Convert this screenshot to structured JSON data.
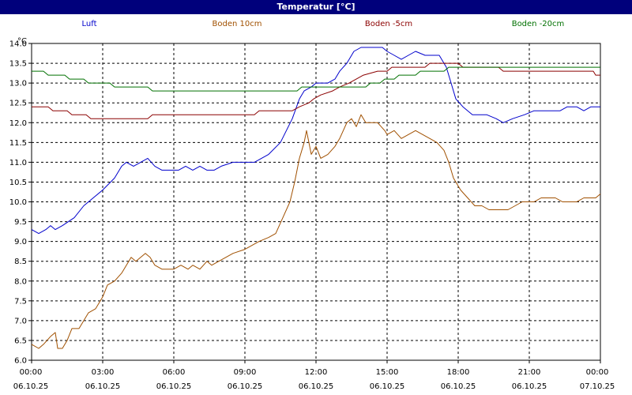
{
  "window": {
    "title": "Temperatur [°C]"
  },
  "chart_data": {
    "type": "line",
    "title": "Temperatur [°C]",
    "ylabel": "°C",
    "ylim": [
      6.0,
      14.0
    ],
    "yticks": [
      "6.0",
      "6.5",
      "7.0",
      "7.5",
      "8.0",
      "8.5",
      "9.0",
      "9.5",
      "10.0",
      "10.5",
      "11.0",
      "11.5",
      "12.0",
      "12.5",
      "13.0",
      "13.5",
      "14.0"
    ],
    "xlim": [
      0,
      24
    ],
    "xticks": [
      {
        "time": "00:00",
        "date": "06.10.25"
      },
      {
        "time": "03:00",
        "date": "06.10.25"
      },
      {
        "time": "06:00",
        "date": "06.10.25"
      },
      {
        "time": "09:00",
        "date": "06.10.25"
      },
      {
        "time": "12:00",
        "date": "06.10.25"
      },
      {
        "time": "15:00",
        "date": "06.10.25"
      },
      {
        "time": "18:00",
        "date": "06.10.25"
      },
      {
        "time": "21:00",
        "date": "06.10.25"
      },
      {
        "time": "00:00",
        "date": "07.10.25"
      }
    ],
    "grid": true,
    "legend_position": "top",
    "series": [
      {
        "name": "Luft",
        "color": "#0000cc",
        "points": [
          [
            0,
            9.3
          ],
          [
            0.3,
            9.2
          ],
          [
            0.6,
            9.3
          ],
          [
            0.8,
            9.4
          ],
          [
            1.0,
            9.3
          ],
          [
            1.3,
            9.4
          ],
          [
            1.8,
            9.6
          ],
          [
            2.2,
            9.9
          ],
          [
            2.6,
            10.1
          ],
          [
            3.0,
            10.3
          ],
          [
            3.5,
            10.6
          ],
          [
            3.8,
            10.9
          ],
          [
            4.0,
            11.0
          ],
          [
            4.3,
            10.9
          ],
          [
            4.6,
            11.0
          ],
          [
            4.9,
            11.1
          ],
          [
            5.2,
            10.9
          ],
          [
            5.5,
            10.8
          ],
          [
            5.9,
            10.8
          ],
          [
            6.2,
            10.8
          ],
          [
            6.5,
            10.9
          ],
          [
            6.8,
            10.8
          ],
          [
            7.1,
            10.9
          ],
          [
            7.4,
            10.8
          ],
          [
            7.7,
            10.8
          ],
          [
            8.0,
            10.9
          ],
          [
            8.5,
            11.0
          ],
          [
            9.0,
            11.0
          ],
          [
            9.4,
            11.0
          ],
          [
            10.0,
            11.2
          ],
          [
            10.5,
            11.5
          ],
          [
            11.0,
            12.1
          ],
          [
            11.3,
            12.6
          ],
          [
            11.5,
            12.8
          ],
          [
            11.8,
            12.9
          ],
          [
            12.0,
            13.0
          ],
          [
            12.5,
            13.0
          ],
          [
            12.8,
            13.1
          ],
          [
            13.0,
            13.3
          ],
          [
            13.3,
            13.5
          ],
          [
            13.6,
            13.8
          ],
          [
            13.9,
            13.9
          ],
          [
            14.8,
            13.9
          ],
          [
            15.0,
            13.8
          ],
          [
            15.3,
            13.7
          ],
          [
            15.6,
            13.6
          ],
          [
            15.9,
            13.7
          ],
          [
            16.2,
            13.8
          ],
          [
            16.6,
            13.7
          ],
          [
            17.2,
            13.7
          ],
          [
            17.5,
            13.4
          ],
          [
            17.7,
            13.0
          ],
          [
            17.9,
            12.6
          ],
          [
            18.2,
            12.4
          ],
          [
            18.6,
            12.2
          ],
          [
            19.2,
            12.2
          ],
          [
            19.6,
            12.1
          ],
          [
            19.9,
            12.0
          ],
          [
            20.3,
            12.1
          ],
          [
            20.8,
            12.2
          ],
          [
            21.2,
            12.3
          ],
          [
            22.3,
            12.3
          ],
          [
            22.6,
            12.4
          ],
          [
            23.0,
            12.4
          ],
          [
            23.3,
            12.3
          ],
          [
            23.6,
            12.4
          ],
          [
            24.0,
            12.4
          ]
        ]
      },
      {
        "name": "Boden 10cm",
        "color": "#a05000",
        "points": [
          [
            0,
            6.4
          ],
          [
            0.3,
            6.3
          ],
          [
            0.5,
            6.4
          ],
          [
            0.8,
            6.6
          ],
          [
            1.0,
            6.7
          ],
          [
            1.1,
            6.3
          ],
          [
            1.3,
            6.3
          ],
          [
            1.5,
            6.5
          ],
          [
            1.7,
            6.8
          ],
          [
            2.0,
            6.8
          ],
          [
            2.2,
            7.0
          ],
          [
            2.4,
            7.2
          ],
          [
            2.7,
            7.3
          ],
          [
            3.0,
            7.6
          ],
          [
            3.2,
            7.9
          ],
          [
            3.5,
            8.0
          ],
          [
            3.8,
            8.2
          ],
          [
            4.0,
            8.4
          ],
          [
            4.2,
            8.6
          ],
          [
            4.4,
            8.5
          ],
          [
            4.6,
            8.6
          ],
          [
            4.8,
            8.7
          ],
          [
            5.0,
            8.6
          ],
          [
            5.2,
            8.4
          ],
          [
            5.5,
            8.3
          ],
          [
            5.8,
            8.3
          ],
          [
            6.0,
            8.3
          ],
          [
            6.3,
            8.4
          ],
          [
            6.6,
            8.3
          ],
          [
            6.8,
            8.4
          ],
          [
            7.1,
            8.3
          ],
          [
            7.4,
            8.5
          ],
          [
            7.6,
            8.4
          ],
          [
            7.9,
            8.5
          ],
          [
            8.2,
            8.6
          ],
          [
            8.5,
            8.7
          ],
          [
            9.0,
            8.8
          ],
          [
            9.3,
            8.9
          ],
          [
            9.6,
            9.0
          ],
          [
            10.0,
            9.1
          ],
          [
            10.3,
            9.2
          ],
          [
            10.6,
            9.6
          ],
          [
            10.9,
            10.0
          ],
          [
            11.1,
            10.5
          ],
          [
            11.3,
            11.1
          ],
          [
            11.5,
            11.5
          ],
          [
            11.6,
            11.8
          ],
          [
            11.8,
            11.2
          ],
          [
            12.0,
            11.4
          ],
          [
            12.2,
            11.1
          ],
          [
            12.5,
            11.2
          ],
          [
            12.8,
            11.4
          ],
          [
            13.0,
            11.6
          ],
          [
            13.3,
            12.0
          ],
          [
            13.5,
            12.1
          ],
          [
            13.7,
            11.9
          ],
          [
            13.9,
            12.2
          ],
          [
            14.1,
            12.0
          ],
          [
            14.3,
            12.0
          ],
          [
            14.6,
            12.0
          ],
          [
            14.9,
            11.8
          ],
          [
            15.0,
            11.7
          ],
          [
            15.3,
            11.8
          ],
          [
            15.6,
            11.6
          ],
          [
            15.9,
            11.7
          ],
          [
            16.2,
            11.8
          ],
          [
            16.5,
            11.7
          ],
          [
            16.8,
            11.6
          ],
          [
            17.1,
            11.5
          ],
          [
            17.4,
            11.3
          ],
          [
            17.6,
            11.0
          ],
          [
            17.8,
            10.6
          ],
          [
            18.1,
            10.3
          ],
          [
            18.4,
            10.1
          ],
          [
            18.7,
            9.9
          ],
          [
            19.0,
            9.9
          ],
          [
            19.3,
            9.8
          ],
          [
            19.6,
            9.8
          ],
          [
            20.1,
            9.8
          ],
          [
            20.4,
            9.9
          ],
          [
            20.7,
            10.0
          ],
          [
            21.2,
            10.0
          ],
          [
            21.5,
            10.1
          ],
          [
            22.1,
            10.1
          ],
          [
            22.4,
            10.0
          ],
          [
            23.0,
            10.0
          ],
          [
            23.3,
            10.1
          ],
          [
            23.8,
            10.1
          ],
          [
            24.0,
            10.2
          ]
        ]
      },
      {
        "name": "Boden -5cm",
        "color": "#8b0000",
        "points": [
          [
            0,
            12.4
          ],
          [
            0.7,
            12.4
          ],
          [
            0.9,
            12.3
          ],
          [
            1.5,
            12.3
          ],
          [
            1.7,
            12.2
          ],
          [
            2.3,
            12.2
          ],
          [
            2.5,
            12.1
          ],
          [
            4.9,
            12.1
          ],
          [
            5.1,
            12.2
          ],
          [
            9.4,
            12.2
          ],
          [
            9.6,
            12.3
          ],
          [
            11.0,
            12.3
          ],
          [
            11.3,
            12.4
          ],
          [
            11.7,
            12.5
          ],
          [
            11.9,
            12.6
          ],
          [
            12.2,
            12.7
          ],
          [
            12.7,
            12.8
          ],
          [
            13.0,
            12.9
          ],
          [
            13.4,
            13.0
          ],
          [
            13.7,
            13.1
          ],
          [
            14.0,
            13.2
          ],
          [
            14.6,
            13.3
          ],
          [
            15.0,
            13.3
          ],
          [
            15.2,
            13.4
          ],
          [
            16.6,
            13.4
          ],
          [
            16.8,
            13.5
          ],
          [
            18.0,
            13.5
          ],
          [
            18.2,
            13.4
          ],
          [
            19.7,
            13.4
          ],
          [
            19.9,
            13.3
          ],
          [
            23.7,
            13.3
          ],
          [
            23.8,
            13.2
          ],
          [
            24.0,
            13.2
          ]
        ]
      },
      {
        "name": "Boden -20cm",
        "color": "#007000",
        "points": [
          [
            0,
            13.3
          ],
          [
            0.5,
            13.3
          ],
          [
            0.7,
            13.2
          ],
          [
            1.4,
            13.2
          ],
          [
            1.6,
            13.1
          ],
          [
            2.2,
            13.1
          ],
          [
            2.4,
            13.0
          ],
          [
            3.3,
            13.0
          ],
          [
            3.5,
            12.9
          ],
          [
            4.9,
            12.9
          ],
          [
            5.1,
            12.8
          ],
          [
            11.2,
            12.8
          ],
          [
            11.4,
            12.9
          ],
          [
            14.1,
            12.9
          ],
          [
            14.3,
            13.0
          ],
          [
            14.7,
            13.0
          ],
          [
            14.9,
            13.1
          ],
          [
            15.3,
            13.1
          ],
          [
            15.5,
            13.2
          ],
          [
            16.2,
            13.2
          ],
          [
            16.4,
            13.3
          ],
          [
            17.4,
            13.3
          ],
          [
            17.6,
            13.4
          ],
          [
            24.0,
            13.4
          ]
        ]
      }
    ]
  }
}
